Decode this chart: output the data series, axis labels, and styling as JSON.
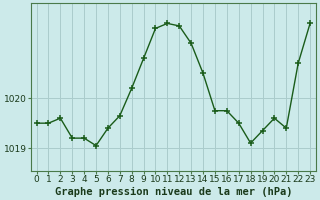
{
  "x": [
    0,
    1,
    2,
    3,
    4,
    5,
    6,
    7,
    8,
    9,
    10,
    11,
    12,
    13,
    14,
    15,
    16,
    17,
    18,
    19,
    20,
    21,
    22,
    23
  ],
  "y": [
    1019.5,
    1019.5,
    1019.6,
    1019.2,
    1019.2,
    1019.05,
    1019.4,
    1019.65,
    1020.2,
    1020.8,
    1021.4,
    1021.5,
    1021.45,
    1021.1,
    1020.5,
    1019.75,
    1019.75,
    1019.5,
    1019.1,
    1019.35,
    1019.6,
    1019.4,
    1020.7,
    1021.5
  ],
  "line_color": "#1a5c1a",
  "marker_color": "#1a5c1a",
  "bg_color": "#cceaea",
  "grid_color": "#aacccc",
  "xlabel": "Graphe pression niveau de la mer (hPa)",
  "xlabel_fontsize": 7.5,
  "tick_fontsize": 6.5,
  "yticks": [
    1019,
    1020
  ],
  "ylim": [
    1018.55,
    1021.9
  ],
  "xlim": [
    -0.5,
    23.5
  ],
  "xticks": [
    0,
    1,
    2,
    3,
    4,
    5,
    6,
    7,
    8,
    9,
    10,
    11,
    12,
    13,
    14,
    15,
    16,
    17,
    18,
    19,
    20,
    21,
    22,
    23
  ]
}
